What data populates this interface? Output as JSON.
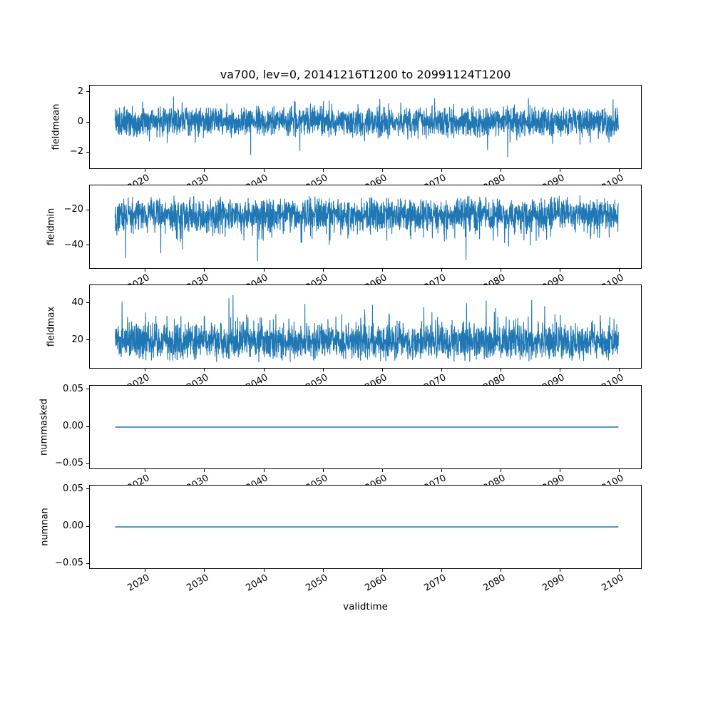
{
  "chart_data": {
    "type": "line",
    "title": "va700, lev=0, 20141216T1200 to 20991124T1200",
    "xlabel": "validtime",
    "series_color": "#1f77b4",
    "axis_color": "#000000",
    "background_color": "#ffffff",
    "legend": "none",
    "grid": false,
    "x": {
      "label": "validtime",
      "lim": [
        2010.7,
        2103.7
      ],
      "data_range": [
        2014.96,
        2099.9
      ],
      "ticks": [
        2020,
        2030,
        2040,
        2050,
        2060,
        2070,
        2080,
        2090,
        2100
      ],
      "tick_labels": [
        "2020",
        "2030",
        "2040",
        "2050",
        "2060",
        "2070",
        "2080",
        "2090",
        "2100"
      ],
      "tick_label_rotation_deg": 30
    },
    "subplots": [
      {
        "name": "fieldmean",
        "ylabel": "fieldmean",
        "ylim": [
          -3.02,
          2.47
        ],
        "yticks": [
          {
            "v": 2,
            "label": "2"
          },
          {
            "v": 0,
            "label": "0"
          },
          {
            "v": -2,
            "label": "−2"
          }
        ],
        "summary": {
          "kind": "dense-noise",
          "dense_band": [
            -1.0,
            1.1
          ],
          "typical_extent": [
            -1.9,
            1.9
          ],
          "extremes": [
            -2.8,
            2.3
          ],
          "mean": 0.08
        },
        "signal": {
          "kind": "noise",
          "seed": 11,
          "n": 2600,
          "mean": 0.08,
          "amp": 1.1,
          "bump_prob": 0.3,
          "bump_amp": 0.75,
          "bump_dir": "both",
          "spike_prob": 0.012,
          "spike_min": 0.5,
          "spike_max": 1.25,
          "spike_dir": "both"
        }
      },
      {
        "name": "fieldmin",
        "ylabel": "fieldmin",
        "ylim": [
          -52.8,
          -5.6
        ],
        "yticks": [
          {
            "v": -20,
            "label": "−20"
          },
          {
            "v": -40,
            "label": "−40"
          }
        ],
        "summary": {
          "kind": "dense-noise",
          "dense_band": [
            -32,
            -11
          ],
          "typical_extent": [
            -42,
            -9
          ],
          "extremes": [
            -50.5,
            -8
          ],
          "mean": -21.5
        },
        "signal": {
          "kind": "noise",
          "seed": 22,
          "n": 2600,
          "mean": -21.5,
          "amp": 10.5,
          "bump_prob": 0.25,
          "bump_amp": 9,
          "bump_dir": "down",
          "spike_prob": 0.012,
          "spike_min": 8,
          "spike_max": 19,
          "spike_dir": "down"
        }
      },
      {
        "name": "fieldmax",
        "ylabel": "fieldmax",
        "ylim": [
          5.3,
          49.8
        ],
        "yticks": [
          {
            "v": 40,
            "label": "40"
          },
          {
            "v": 20,
            "label": "20"
          }
        ],
        "summary": {
          "kind": "dense-noise",
          "dense_band": [
            10,
            29
          ],
          "typical_extent": [
            8,
            38
          ],
          "extremes": [
            7,
            48.5
          ],
          "mean": 18.5
        },
        "signal": {
          "kind": "noise",
          "seed": 33,
          "n": 2600,
          "mean": 18.5,
          "amp": 10.5,
          "bump_prob": 0.25,
          "bump_amp": 9,
          "bump_dir": "up",
          "spike_prob": 0.012,
          "spike_min": 8,
          "spike_max": 19,
          "spike_dir": "up"
        }
      },
      {
        "name": "nummasked",
        "ylabel": "nummasked",
        "ylim": [
          -0.0555,
          0.0555
        ],
        "yticks": [
          {
            "v": 0.05,
            "label": "0.05"
          },
          {
            "v": 0.0,
            "label": "0.00"
          },
          {
            "v": -0.05,
            "label": "−0.05"
          }
        ],
        "summary": {
          "kind": "constant",
          "value": 0
        },
        "signal": {
          "kind": "constant",
          "value": 0
        }
      },
      {
        "name": "numnan",
        "ylabel": "numnan",
        "ylim": [
          -0.0555,
          0.0555
        ],
        "yticks": [
          {
            "v": 0.05,
            "label": "0.05"
          },
          {
            "v": 0.0,
            "label": "0.00"
          },
          {
            "v": -0.05,
            "label": "−0.05"
          }
        ],
        "summary": {
          "kind": "constant",
          "value": 0
        },
        "signal": {
          "kind": "constant",
          "value": 0
        }
      }
    ]
  }
}
